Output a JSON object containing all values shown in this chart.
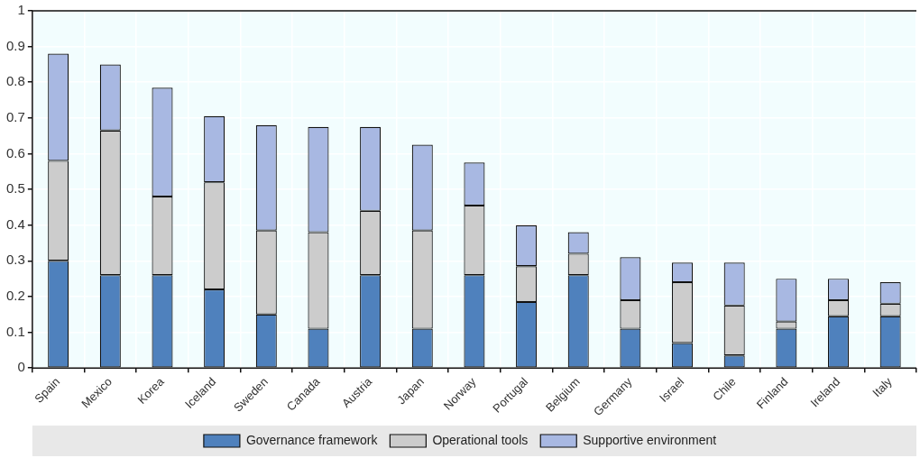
{
  "chart_data": {
    "type": "bar",
    "stacked": true,
    "categories": [
      "Spain",
      "Mexico",
      "Korea",
      "Iceland",
      "Sweden",
      "Canada",
      "Austria",
      "Japan",
      "Norway",
      "Portugal",
      "Belgium",
      "Germany",
      "Israel",
      "Chile",
      "Finland",
      "Ireland",
      "Italy"
    ],
    "series": [
      {
        "name": "Governance framework",
        "color": "#4f81bd",
        "values": [
          0.3,
          0.26,
          0.26,
          0.22,
          0.15,
          0.11,
          0.26,
          0.11,
          0.26,
          0.185,
          0.26,
          0.11,
          0.07,
          0.035,
          0.11,
          0.145,
          0.145
        ]
      },
      {
        "name": "Operational tools",
        "color": "#cccccc",
        "values": [
          0.28,
          0.405,
          0.22,
          0.3,
          0.235,
          0.27,
          0.18,
          0.275,
          0.195,
          0.1,
          0.06,
          0.08,
          0.17,
          0.14,
          0.02,
          0.045,
          0.035
        ]
      },
      {
        "name": "Supportive environment",
        "color": "#a8b8e2",
        "values": [
          0.3,
          0.185,
          0.305,
          0.185,
          0.295,
          0.295,
          0.235,
          0.24,
          0.12,
          0.115,
          0.06,
          0.12,
          0.055,
          0.12,
          0.12,
          0.06,
          0.06
        ]
      }
    ],
    "ylim": [
      0,
      1
    ],
    "yticks": [
      0,
      0.1,
      0.2,
      0.3,
      0.4,
      0.5,
      0.6,
      0.7,
      0.8,
      0.9,
      1
    ],
    "grid": true,
    "legend": "bottom"
  }
}
